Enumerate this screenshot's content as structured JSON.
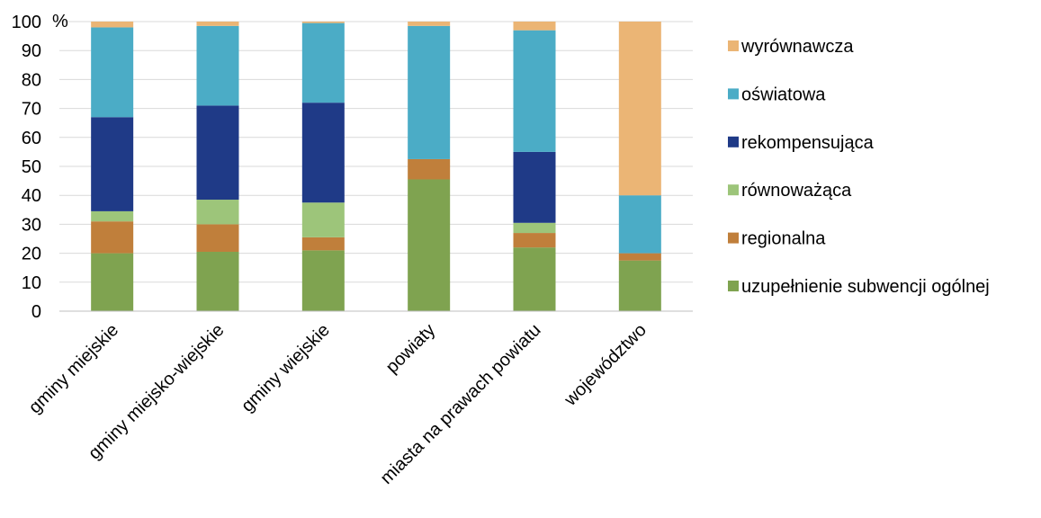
{
  "chart_data": {
    "type": "bar",
    "stacked": true,
    "y_unit_label": "%",
    "ylim": [
      0,
      100
    ],
    "yticks": [
      "0",
      "10",
      "20",
      "30",
      "40",
      "50",
      "60",
      "70",
      "80",
      "90",
      "100"
    ],
    "grid": "horizontal",
    "legend_position": "right",
    "categories": [
      "gminy miejskie",
      "gminy miejsko-wiejskie",
      "gminy wiejskie",
      "powiaty",
      "miasta na prawach powiatu",
      "województwo"
    ],
    "series": [
      {
        "name": "uzupełnienie subwencji ogólnej",
        "color": "#7fa350",
        "values": [
          20,
          20.5,
          21,
          45.5,
          22,
          17.5
        ]
      },
      {
        "name": "regionalna",
        "color": "#c07f3b",
        "values": [
          11,
          9.5,
          4.5,
          7,
          5,
          2.5
        ]
      },
      {
        "name": "równoważąca",
        "color": "#9dc57a",
        "values": [
          3.5,
          8.5,
          12,
          0,
          3.5,
          0
        ]
      },
      {
        "name": "rekompensująca",
        "color": "#1f3a87",
        "values": [
          32.5,
          32.5,
          34.5,
          0,
          24.5,
          0
        ]
      },
      {
        "name": "oświatowa",
        "color": "#4bacc6",
        "values": [
          31,
          27.5,
          27.5,
          46,
          42,
          20
        ]
      },
      {
        "name": "wyrównawcza",
        "color": "#ebb575",
        "values": [
          2,
          1.5,
          0.5,
          1.5,
          3,
          60
        ]
      }
    ]
  }
}
